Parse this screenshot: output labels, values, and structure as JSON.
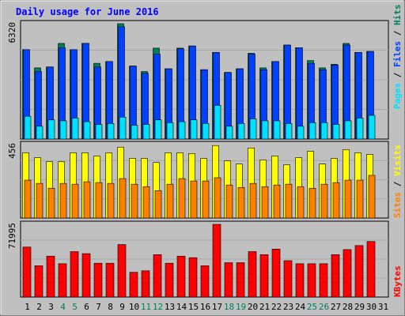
{
  "title": "Daily usage for June 2016",
  "colors": {
    "background": "#c0c0c0",
    "title": "#0000ff",
    "hits": "#00805c",
    "files": "#0040ff",
    "pages": "#00e0ff",
    "visits": "#ffff00",
    "sites": "#ff8000",
    "kbytes": "#ff0000",
    "weekend_label": "#00805c",
    "weekday_label": "#000000"
  },
  "chart_data": {
    "type": "bar",
    "x": [
      "1",
      "2",
      "3",
      "4",
      "5",
      "6",
      "7",
      "8",
      "9",
      "10",
      "11",
      "12",
      "13",
      "14",
      "15",
      "16",
      "17",
      "18",
      "19",
      "20",
      "21",
      "22",
      "23",
      "24",
      "25",
      "26",
      "27",
      "28",
      "29",
      "30",
      "31"
    ],
    "weekend_days": [
      "4",
      "5",
      "11",
      "12",
      "18",
      "19",
      "25",
      "26"
    ],
    "panels": [
      {
        "name": "hits-files-pages",
        "ymax_label": "6320",
        "ylim": [
          0,
          6320
        ],
        "legend": [
          "Pages",
          "Files",
          "Hits"
        ],
        "series": [
          {
            "name": "Hits",
            "values": [
              4900,
              3900,
              3950,
              5240,
              4900,
              5240,
              4150,
              4250,
              6320,
              4000,
              3700,
              4980,
              3850,
              4980,
              5100,
              3800,
              4750,
              3650,
              3850,
              4700,
              3900,
              4250,
              5150,
              5000,
              4300,
              3900,
              4100,
              5240,
              4750,
              4800,
              0
            ]
          },
          {
            "name": "Files",
            "values": [
              4900,
              3700,
              3950,
              5000,
              4900,
              5240,
              3950,
              4250,
              6150,
              4000,
              3600,
              4650,
              3850,
              4950,
              5100,
              3800,
              4750,
              3650,
              3850,
              4650,
              3800,
              4250,
              5150,
              5000,
              4150,
              3800,
              4050,
              5150,
              4750,
              4800,
              0
            ]
          },
          {
            "name": "Pages",
            "values": [
              1250,
              700,
              1050,
              1000,
              1150,
              950,
              800,
              850,
              1200,
              750,
              800,
              1050,
              900,
              950,
              1050,
              850,
              1850,
              700,
              850,
              1100,
              1000,
              1000,
              850,
              700,
              900,
              900,
              800,
              1000,
              1150,
              1300,
              0
            ]
          }
        ]
      },
      {
        "name": "visits-sites",
        "ymax_label": "456",
        "ylim": [
          0,
          456
        ],
        "legend": [
          "Sites",
          "Visits"
        ],
        "series": [
          {
            "name": "Visits",
            "values": [
              405,
              375,
              350,
              350,
              405,
              405,
              385,
              405,
              440,
              370,
              370,
              345,
              405,
              405,
              400,
              370,
              450,
              355,
              335,
              435,
              360,
              385,
              330,
              375,
              415,
              335,
              370,
              425,
              405,
              395,
              0
            ]
          },
          {
            "name": "Sites",
            "values": [
              235,
              215,
              185,
              215,
              210,
              225,
              220,
              215,
              245,
              210,
              195,
              170,
              210,
              245,
              230,
              230,
              250,
              205,
              190,
              215,
              195,
              205,
              210,
              195,
              185,
              210,
              220,
              235,
              235,
              265,
              0
            ]
          }
        ]
      },
      {
        "name": "kbytes",
        "ymax_label": "71995",
        "ylim": [
          0,
          71995
        ],
        "legend": [
          "KBytes"
        ],
        "series": [
          {
            "name": "KBytes",
            "values": [
              49500,
              31000,
              40500,
              33000,
              45000,
              43000,
              33500,
              33500,
              52000,
              24500,
              26000,
              42000,
              33500,
              40500,
              39000,
              31000,
              71995,
              34000,
              34000,
              45000,
              42000,
              47500,
              36000,
              33000,
              33000,
              33000,
              42000,
              47000,
              51000,
              55000,
              0
            ]
          }
        ]
      }
    ]
  }
}
